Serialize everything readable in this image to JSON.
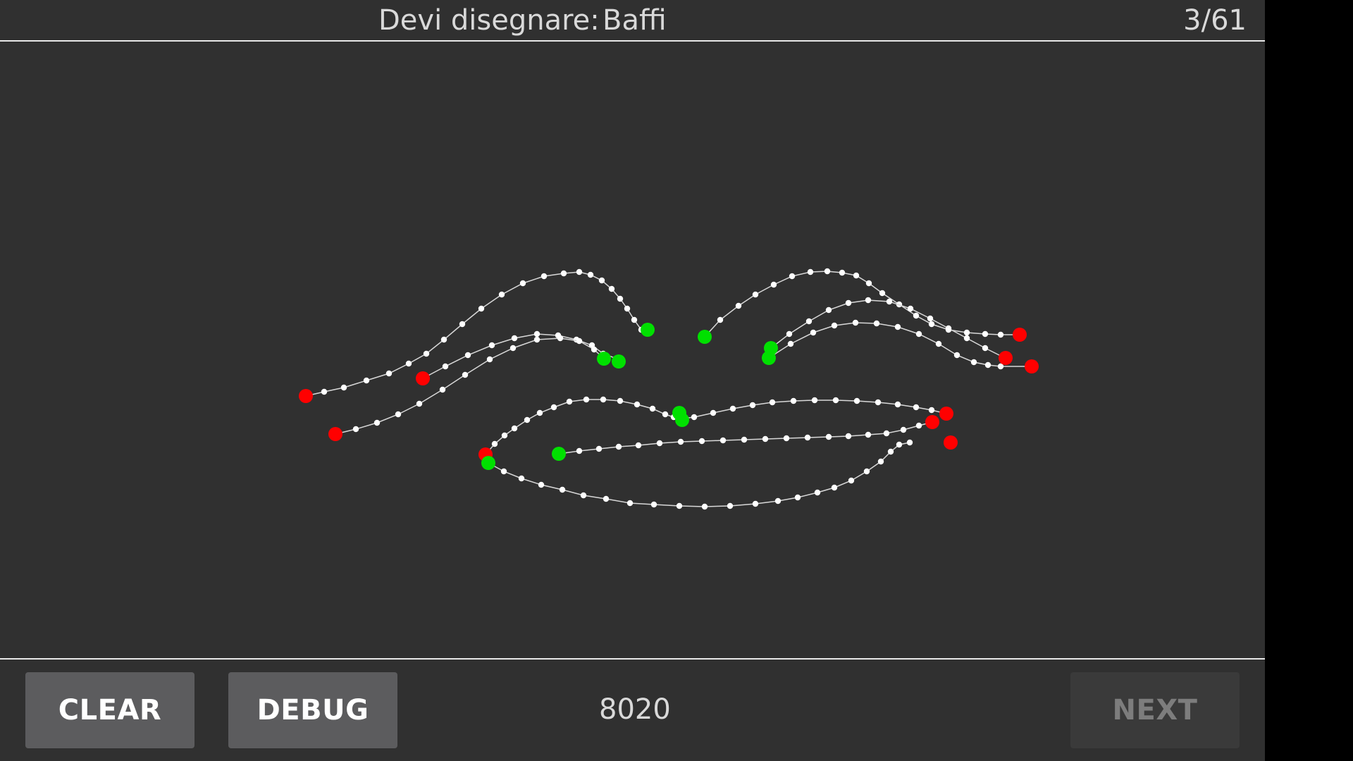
{
  "header": {
    "prompt_label": "Devi disegnare:",
    "prompt_word": "Baffi",
    "counter": "3/61"
  },
  "footer": {
    "clear_label": "CLEAR",
    "debug_label": "DEBUG",
    "score": "8020",
    "next_label": "NEXT"
  },
  "colors": {
    "background": "#303030",
    "stroke": "#ffffff",
    "start_point": "#00e000",
    "end_point": "#ff0000",
    "button": "#5c5c5e",
    "button_disabled": "#3a3a3a"
  },
  "next_enabled": false
}
